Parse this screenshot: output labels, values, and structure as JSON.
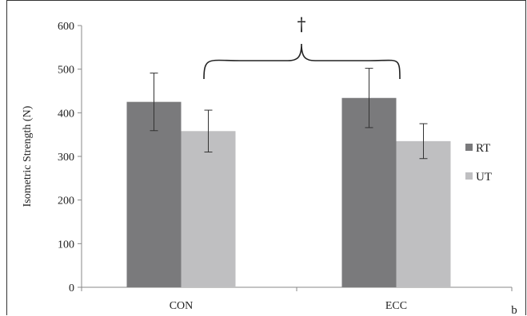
{
  "chart_data": {
    "type": "bar",
    "categories": [
      "CON",
      "ECC"
    ],
    "series": [
      {
        "name": "RT",
        "values": [
          425,
          434
        ],
        "errors": [
          66,
          68
        ],
        "color": "#7a7a7c"
      },
      {
        "name": "UT",
        "values": [
          358,
          335
        ],
        "errors": [
          48,
          40
        ],
        "color": "#bfbfc1"
      }
    ],
    "ylabel": "Isometric Strength (N)",
    "xlabel": "",
    "ylim": [
      0,
      600
    ],
    "yticks": [
      0,
      100,
      200,
      300,
      400,
      500,
      600
    ],
    "grid": false,
    "legend_position": "right",
    "annotation": "†",
    "panel_label": "b"
  }
}
